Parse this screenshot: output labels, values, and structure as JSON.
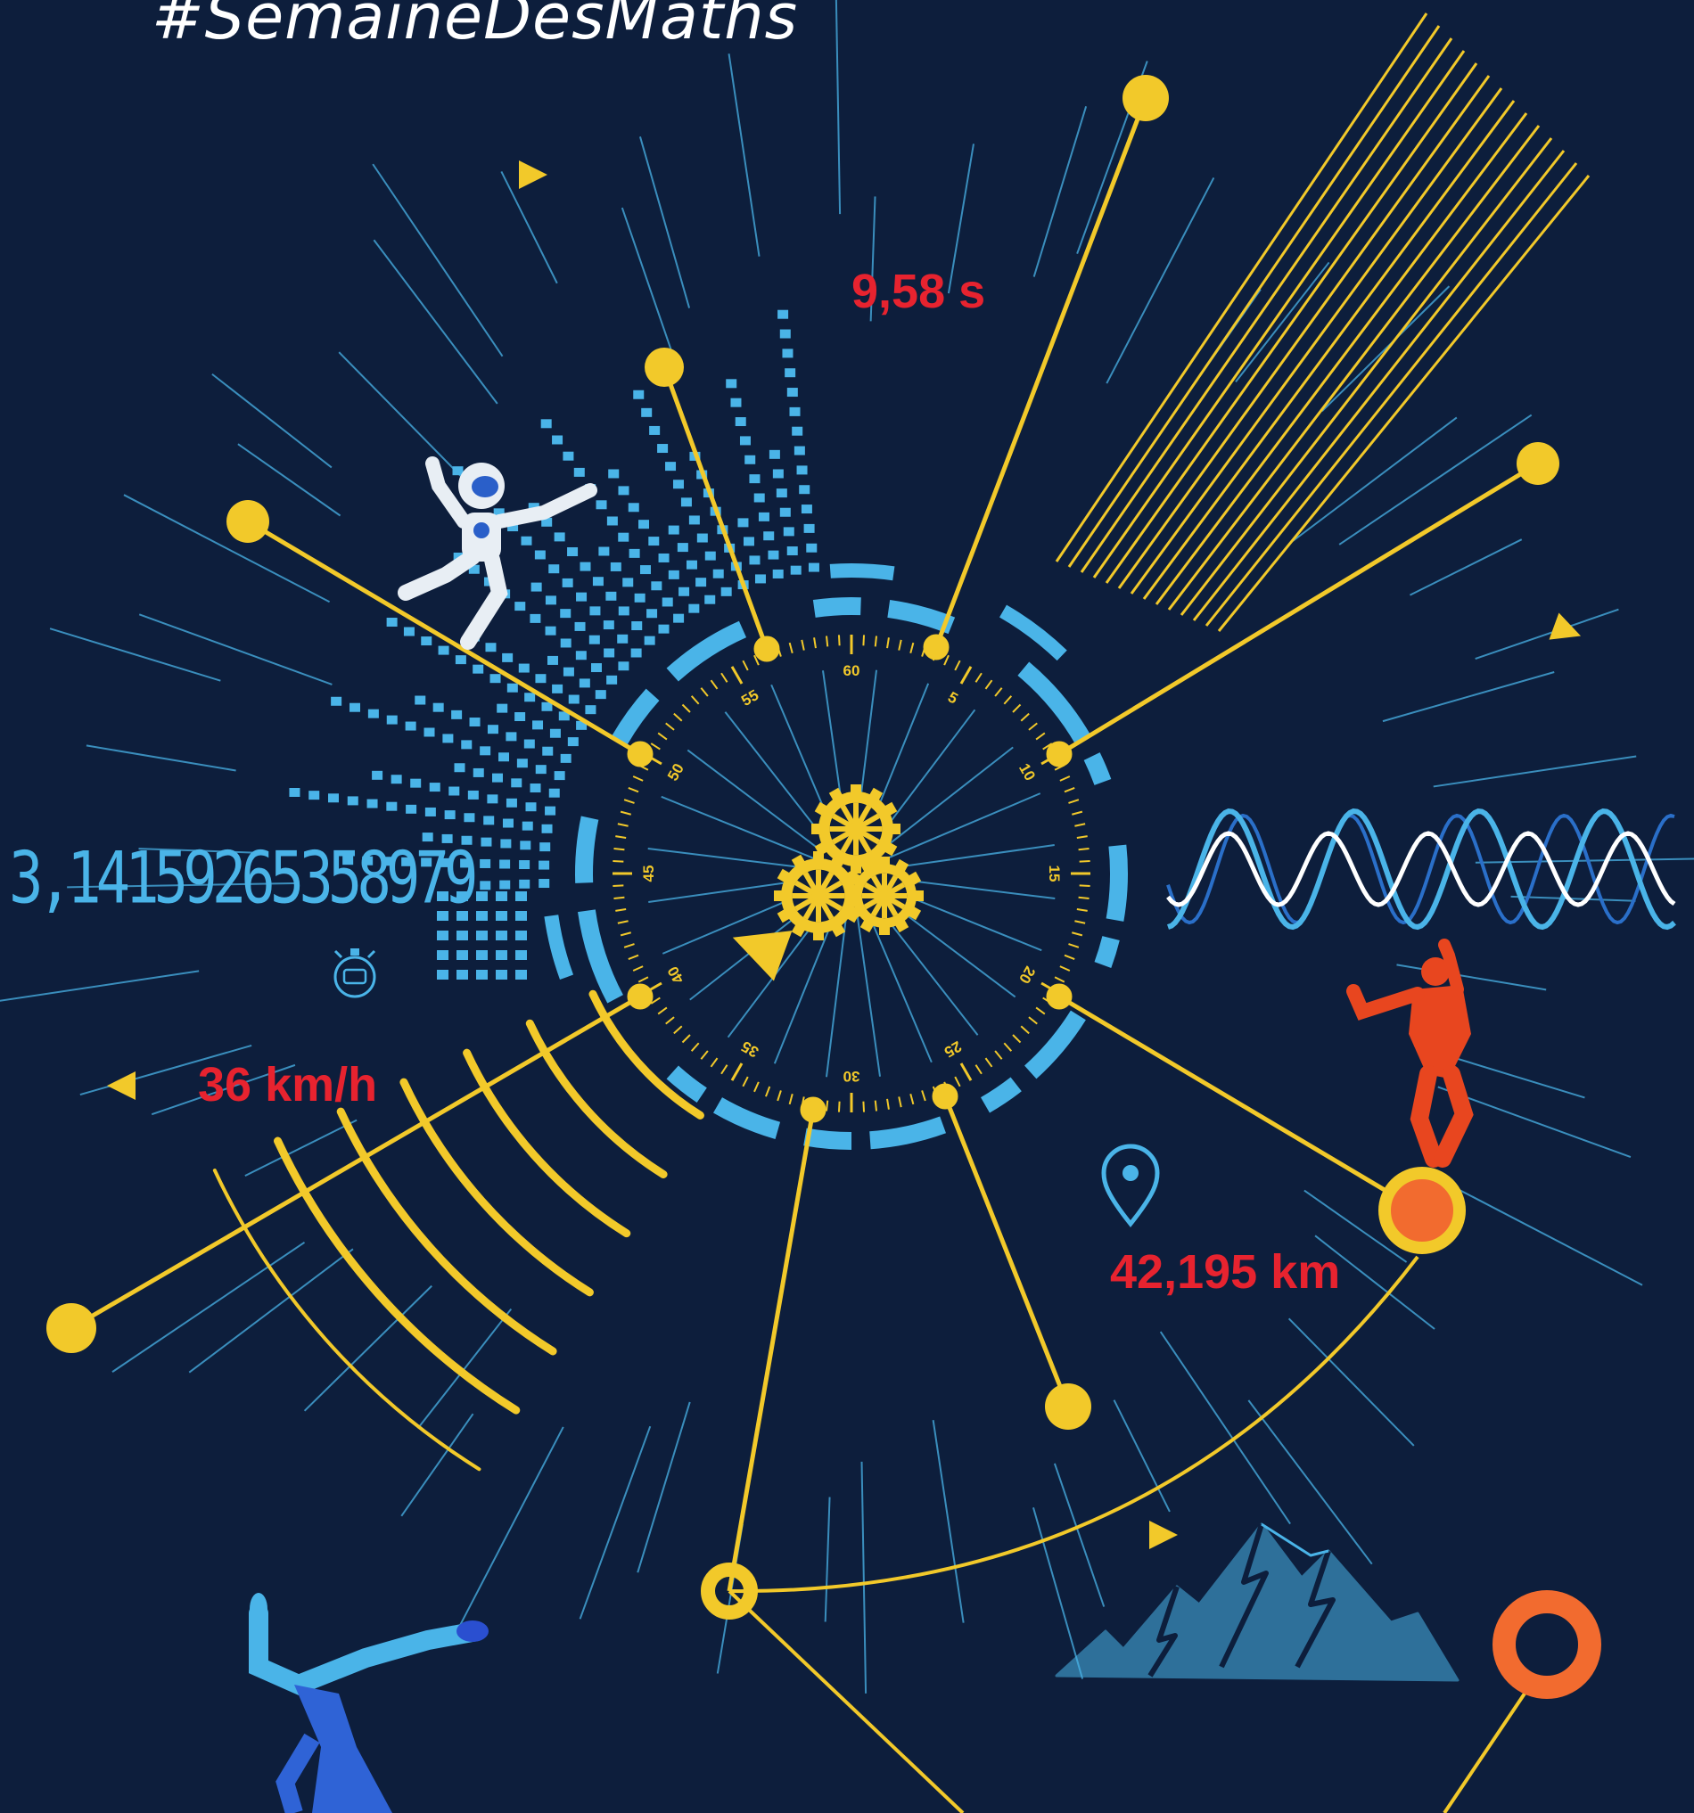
{
  "hashtag": "#SemaineDesMaths",
  "stats": {
    "sprint_time": "9,58 s",
    "speed": "36 km/h",
    "marathon_distance": "42,195 km"
  },
  "pi_digits": "3,14159265358979",
  "dial": {
    "labels": [
      "60",
      "5",
      "10",
      "15",
      "20",
      "25",
      "30",
      "35",
      "40",
      "45",
      "50",
      "55"
    ]
  },
  "colors": {
    "background": "#0d1e3c",
    "yellow": "#f2c92a",
    "light_blue": "#4ab4e8",
    "red_text": "#e7232f",
    "orange": "#f26b2f"
  },
  "icons": [
    "robot-figure",
    "stopwatch-icon",
    "location-pin-icon",
    "gears-icon",
    "mountain-icon",
    "dancer-figure",
    "breakdancer-figure"
  ]
}
